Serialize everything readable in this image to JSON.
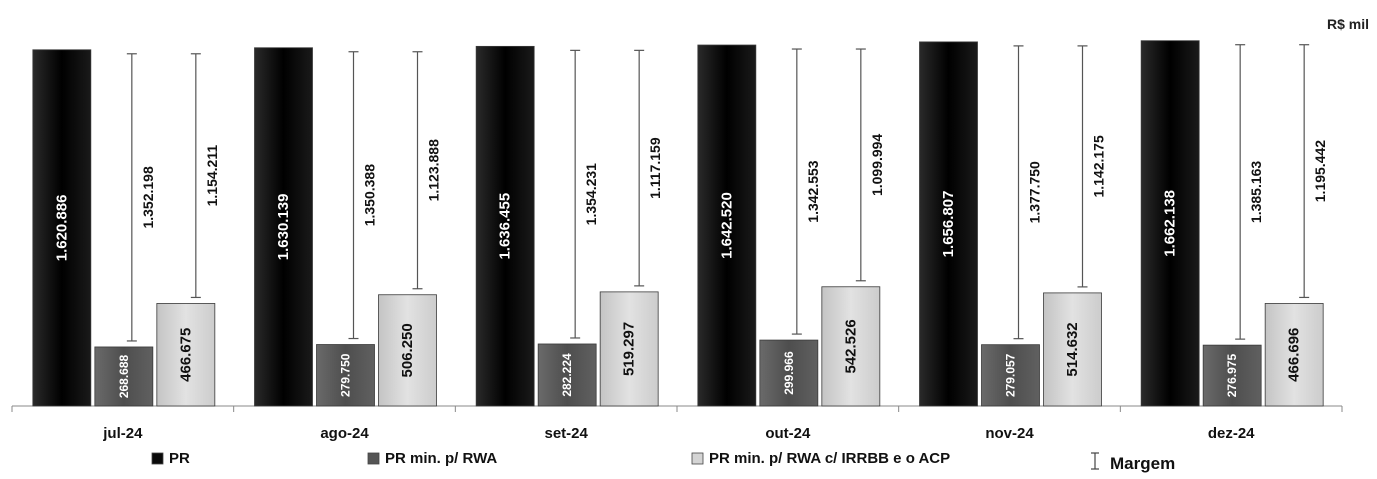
{
  "chart_data": {
    "type": "bar",
    "unit_label": "R$ mil",
    "categories": [
      "jul-24",
      "ago-24",
      "set-24",
      "out-24",
      "nov-24",
      "dez-24"
    ],
    "series": [
      {
        "name": "PR",
        "color": "#0a0a0a",
        "values": [
          1620886,
          1630139,
          1636455,
          1642520,
          1656807,
          1662138
        ],
        "labels": [
          "1.620.886",
          "1.630.139",
          "1.636.455",
          "1.642.520",
          "1.656.807",
          "1.662.138"
        ]
      },
      {
        "name": "PR min. p/ RWA",
        "color": "#555555",
        "values": [
          268688,
          279750,
          282224,
          299966,
          279057,
          276975
        ],
        "labels": [
          "268.688",
          "279.750",
          "282.224",
          "299.966",
          "279.057",
          "276.975"
        ]
      },
      {
        "name": "PR min. p/ RWA c/ IRRBB e o ACP",
        "color": "#d4d4d4",
        "values": [
          466675,
          506250,
          519297,
          542526,
          514632,
          466696
        ],
        "labels": [
          "466.675",
          "506.250",
          "519.297",
          "542.526",
          "514.632",
          "466.696"
        ]
      }
    ],
    "margins": [
      {
        "name": "Margem PR min. p/ RWA",
        "values": [
          1352198,
          1350388,
          1354231,
          1342553,
          1377750,
          1385163
        ],
        "labels": [
          "1.352.198",
          "1.350.388",
          "1.354.231",
          "1.342.553",
          "1.377.750",
          "1.385.163"
        ]
      },
      {
        "name": "Margem PR min. p/ RWA c/ IRRBB e o ACP",
        "values": [
          1154211,
          1123888,
          1117159,
          1099994,
          1142175,
          1195442
        ],
        "labels": [
          "1.154.211",
          "1.123.888",
          "1.117.159",
          "1.099.994",
          "1.142.175",
          "1.195.442"
        ]
      }
    ],
    "legend": [
      {
        "label": "PR",
        "color": "#0a0a0a",
        "kind": "square"
      },
      {
        "label": "PR min. p/ RWA",
        "color": "#555555",
        "kind": "square"
      },
      {
        "label": "PR min. p/ RWA c/ IRRBB e o ACP",
        "color": "#d4d4d4",
        "kind": "square"
      },
      {
        "label": "Margem",
        "color": "#333333",
        "kind": "errorbar"
      }
    ],
    "legend_position": "bottom",
    "ylim": [
      0,
      1720000
    ],
    "grid": false,
    "y_axis_visible": false
  }
}
